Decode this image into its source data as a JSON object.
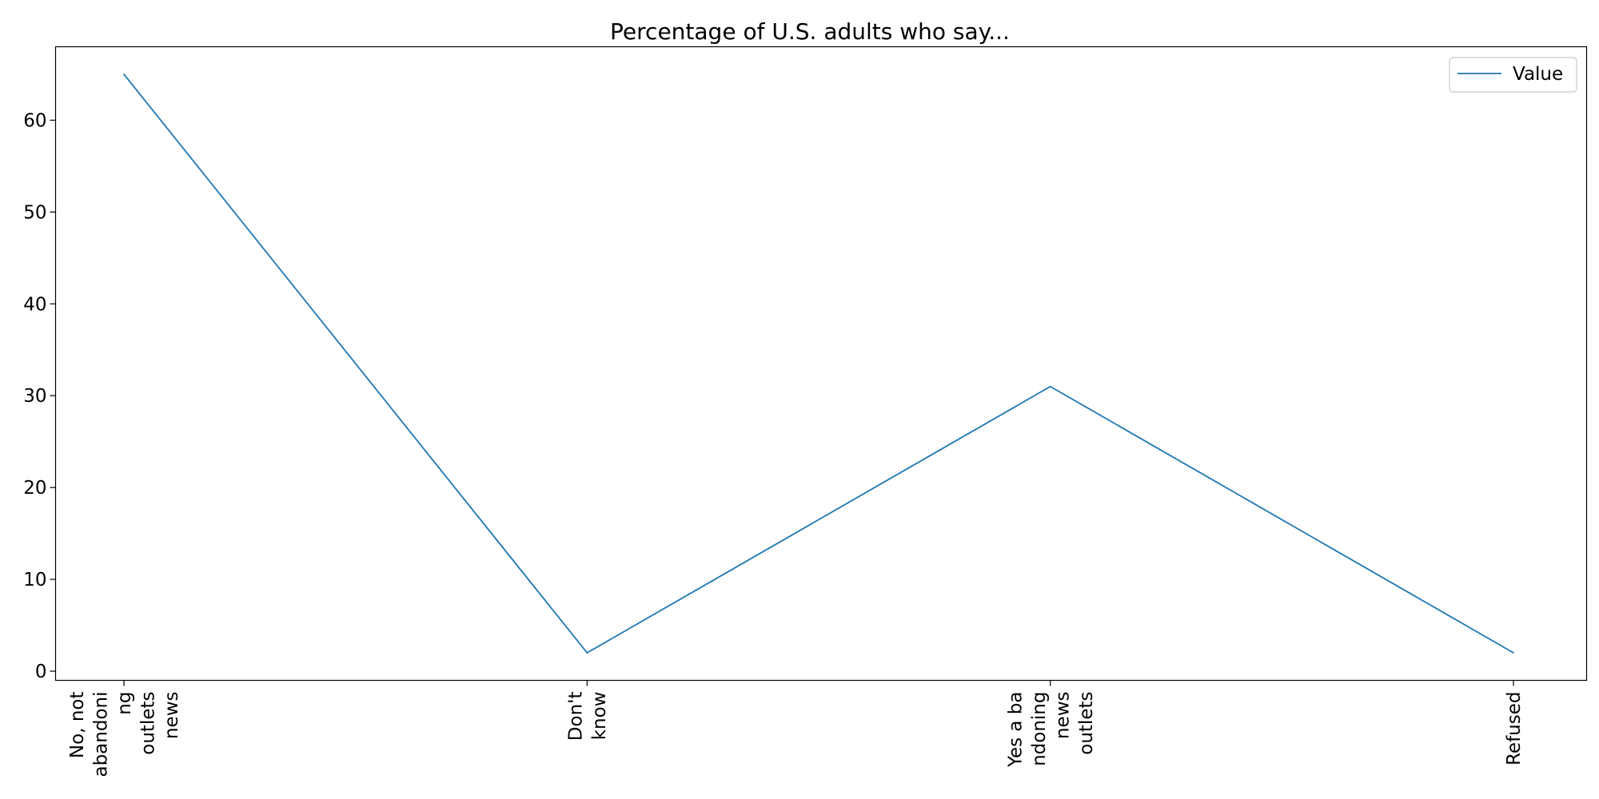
{
  "chart_data": {
    "type": "line",
    "title": "Percentage of U.S. adults who say...",
    "xlabel": "",
    "ylabel": "",
    "categories": [
      [
        "No, not",
        "abandoni",
        "ng",
        "outlets",
        "news"
      ],
      [
        "Don't",
        "know"
      ],
      [
        "Yes a ba",
        "ndoning",
        "news",
        "outlets"
      ],
      [
        "Refused"
      ]
    ],
    "series": [
      {
        "name": "Value",
        "values": [
          65,
          2,
          31,
          2
        ],
        "color": "#1f77b4"
      }
    ],
    "yticks": [
      "0",
      "10",
      "20",
      "30",
      "40",
      "50",
      "60"
    ],
    "ylim": [
      -1,
      68
    ],
    "grid": false,
    "legend": "top-right"
  }
}
